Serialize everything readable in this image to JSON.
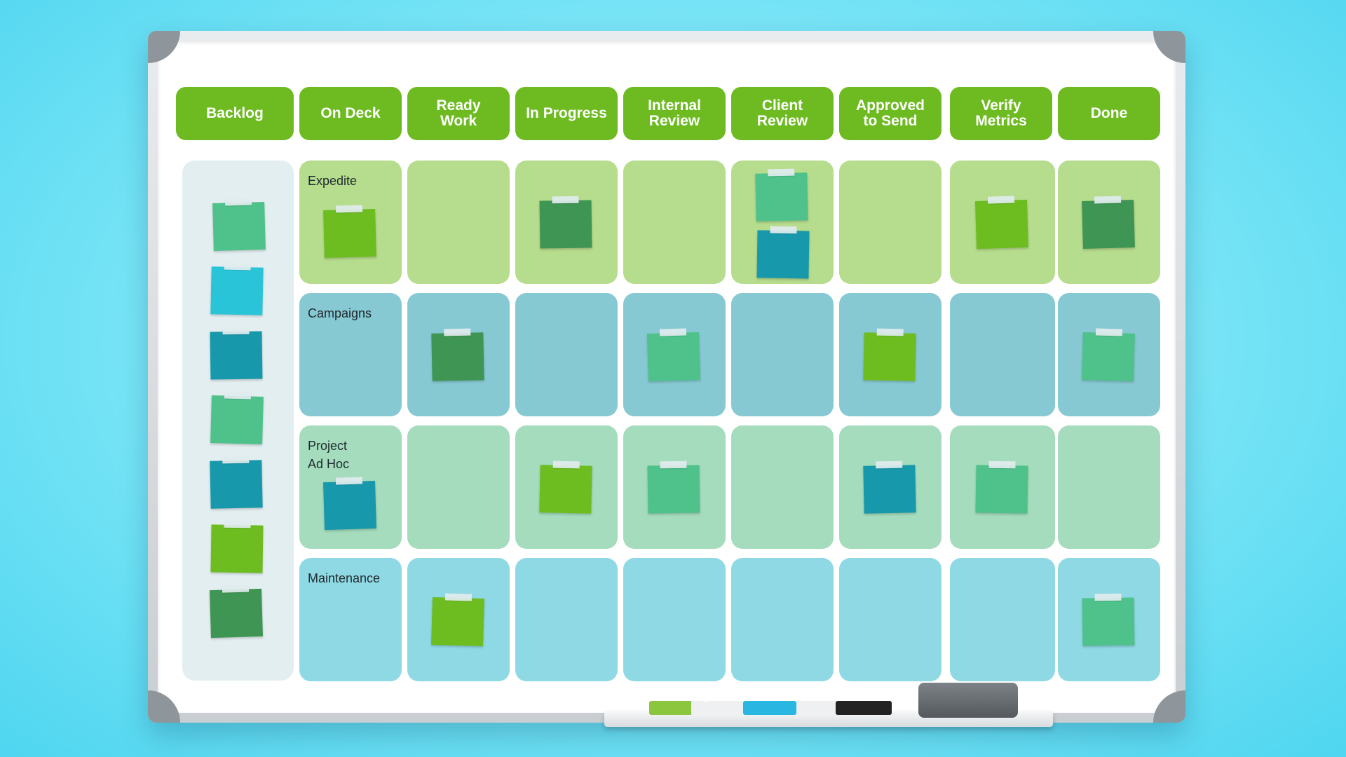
{
  "board": {
    "columns": [
      {
        "label": "Backlog"
      },
      {
        "label": "On Deck"
      },
      {
        "label": "Ready\nWork"
      },
      {
        "label": "In Progress"
      },
      {
        "label": "Internal\nReview"
      },
      {
        "label": "Client\nReview"
      },
      {
        "label": "Approved\nto Send"
      },
      {
        "label": "Verify\nMetrics"
      },
      {
        "label": "Done"
      }
    ],
    "lanes": [
      {
        "label": "Expedite",
        "color": "#b6dc8d"
      },
      {
        "label": "Campaigns",
        "color": "#87c9d3"
      },
      {
        "label": "Project\nAd Hoc",
        "color": "#a4dcbd"
      },
      {
        "label": "Maintenance",
        "color": "#8fd9e5"
      }
    ]
  },
  "note_colors": {
    "mint": "#4fc18a",
    "cyan": "#2ac4d8",
    "teal": "#1799ab",
    "lime": "#6dbd21",
    "forest": "#3f9553"
  },
  "notes": {
    "backlog": [
      "mint",
      "cyan",
      "teal",
      "mint",
      "teal",
      "lime",
      "forest"
    ],
    "expedite": {
      "on_deck": [
        "lime"
      ],
      "in_progress": [
        "forest"
      ],
      "client_review": [
        "mint",
        "teal"
      ],
      "verify_metrics": [
        "lime"
      ],
      "done": [
        "forest"
      ]
    },
    "campaigns": {
      "ready_work": [
        "forest"
      ],
      "internal_review": [
        "mint"
      ],
      "approved_to_send": [
        "lime"
      ],
      "done": [
        "mint"
      ]
    },
    "project_ad_hoc": {
      "on_deck": [
        "teal"
      ],
      "in_progress": [
        "lime"
      ],
      "internal_review": [
        "mint"
      ],
      "approved_to_send": [
        "teal"
      ],
      "verify_metrics": [
        "mint"
      ]
    },
    "maintenance": {
      "ready_work": [
        "lime"
      ],
      "done": [
        "mint"
      ]
    }
  },
  "markers": [
    "green",
    "cyan",
    "black"
  ],
  "accent": "#6dbb21"
}
